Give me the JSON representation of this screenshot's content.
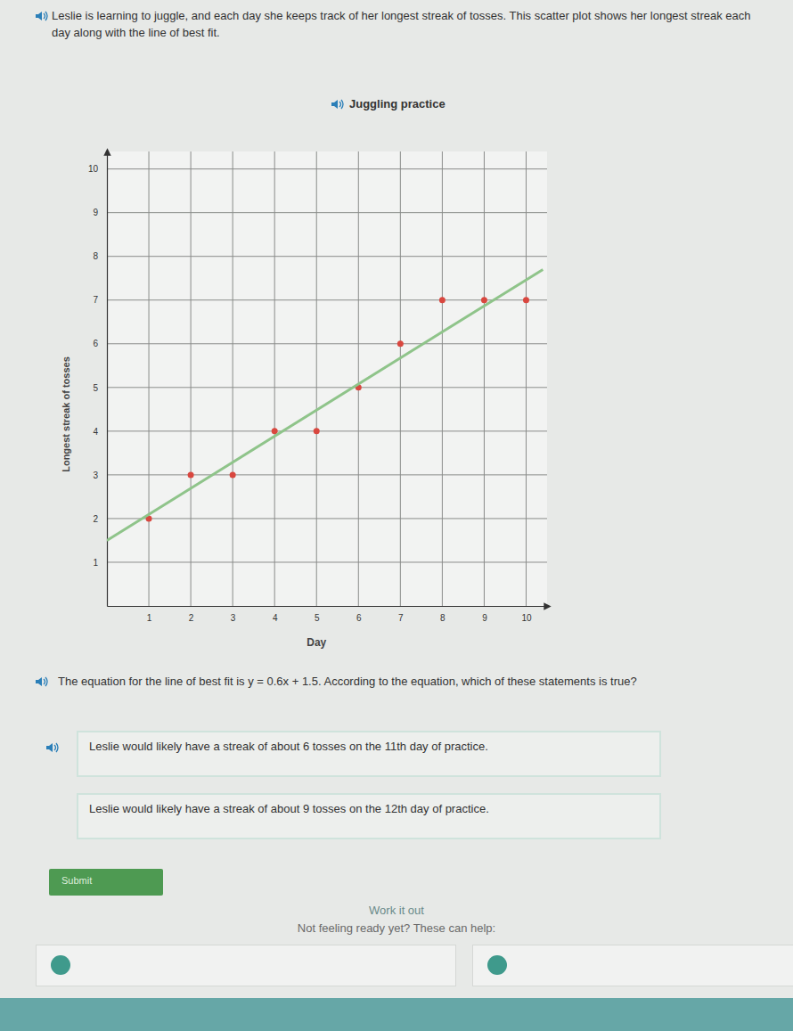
{
  "page": {
    "intro": "Leslie is learning to juggle, and each day she keeps track of her longest streak of tosses. This scatter plot shows her longest streak each day along with the line of best fit.",
    "question": "The equation for the line of best fit is y = 0.6x + 1.5. According to the equation, which of these statements is true?",
    "options": [
      "Leslie would likely have a streak of about 6 tosses on the 11th day of practice.",
      "Leslie would likely have a streak of about 9 tosses on the 12th day of practice."
    ],
    "submit": "Submit",
    "work_heading": "Work it out",
    "help_text": "Not feeling ready yet? These can help:"
  },
  "chart_data": {
    "type": "scatter",
    "title": "Juggling practice",
    "x_label": "Day",
    "y_label": "Longest streak of tosses",
    "xlim": [
      0,
      10.5
    ],
    "ylim": [
      0,
      10.4
    ],
    "xticks": [
      1,
      2,
      3,
      4,
      5,
      6,
      7,
      8,
      9,
      10
    ],
    "yticks": [
      1,
      2,
      3,
      4,
      5,
      6,
      7,
      8,
      9,
      10
    ],
    "grid": true,
    "series": [
      {
        "type": "scatter",
        "color": "#d9473f",
        "marker": "circle",
        "x": [
          1,
          2,
          3,
          4,
          5,
          6,
          7,
          8,
          9,
          10
        ],
        "values": [
          2,
          3,
          3,
          4,
          4,
          5,
          6,
          7,
          7,
          7
        ]
      },
      {
        "type": "line",
        "color": "#8fc48a",
        "line_style": "solid",
        "x": [
          0,
          10.4
        ],
        "values": [
          1.5,
          7.7
        ]
      }
    ]
  }
}
